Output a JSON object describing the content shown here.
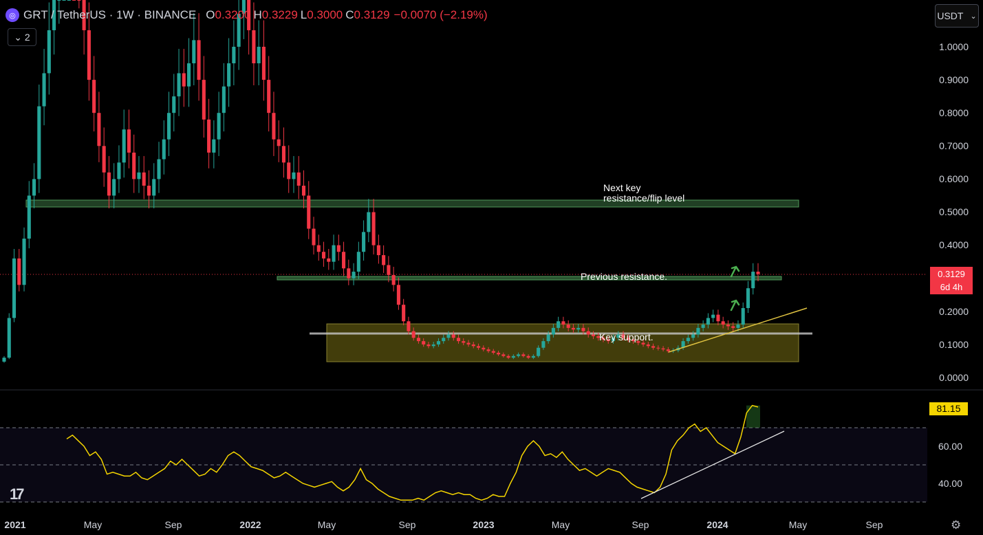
{
  "header": {
    "symbol": "GRT / TetherUS · 1W · BINANCE",
    "open_label": "O",
    "open": "0.3200",
    "high_label": "H",
    "high": "0.3229",
    "low_label": "L",
    "low": "0.3000",
    "close_label": "C",
    "close": "0.3129",
    "change": "−0.0070 (−2.19%)",
    "collapse_count": "2",
    "icon": "GRT-logo"
  },
  "currency_selector": "USDT",
  "price_label": {
    "price": "0.3129",
    "countdown": "6d 4h"
  },
  "rsi_label": "81.15",
  "annotations": {
    "resistance_flip": [
      "Next key",
      "resistance/flip level"
    ],
    "previous_resistance": "Previous resistance.",
    "key_support": "Key support."
  },
  "colors": {
    "up": "#26a69a",
    "down": "#f23645",
    "rsi_line": "#f5d500",
    "zone_green": "#2e5d3a",
    "zone_support": "#5c5712",
    "trendline": "#e0c341",
    "rsi_tag": "#f5d500"
  },
  "chart_data": [
    {
      "type": "candlestick",
      "title": "GRT / TetherUS · 1W · BINANCE",
      "xlabel": "",
      "ylabel": "",
      "ylim": [
        -0.02,
        1.1
      ],
      "price_axis_ticks": [
        "1.0000",
        "0.9000",
        "0.8000",
        "0.7000",
        "0.6000",
        "0.5000",
        "0.4000",
        "0.2000",
        "0.1000",
        "0.0000"
      ],
      "time_axis_ticks": [
        "2021",
        "May",
        "Sep",
        "2022",
        "May",
        "Sep",
        "2023",
        "May",
        "Sep",
        "2024",
        "May",
        "Sep"
      ],
      "key_levels": {
        "next_resistance": [
          0.52,
          0.54
        ],
        "previous_resistance": [
          0.3,
          0.31
        ],
        "key_support_zone": [
          0.05,
          0.17
        ],
        "support_line": 0.13
      },
      "trendline": [
        [
          "2023-10",
          0.075
        ],
        [
          "2024-04",
          0.21
        ]
      ],
      "weekly_close_approx": [
        0.06,
        0.18,
        0.36,
        0.28,
        0.42,
        0.55,
        0.6,
        0.82,
        0.92,
        1.05,
        1.15,
        1.25,
        1.35,
        1.4,
        1.3,
        1.2,
        1.05,
        0.9,
        0.8,
        0.7,
        0.62,
        0.55,
        0.6,
        0.65,
        0.75,
        0.68,
        0.6,
        0.62,
        0.58,
        0.55,
        0.6,
        0.66,
        0.72,
        0.8,
        0.85,
        0.92,
        0.88,
        0.95,
        1.02,
        0.9,
        0.78,
        0.68,
        0.72,
        0.8,
        0.88,
        0.95,
        1.0,
        1.1,
        1.2,
        1.05,
        0.95,
        1.0,
        0.9,
        0.8,
        0.72,
        0.7,
        0.65,
        0.6,
        0.62,
        0.58,
        0.55,
        0.45,
        0.4,
        0.38,
        0.36,
        0.35,
        0.4,
        0.38,
        0.33,
        0.3,
        0.32,
        0.38,
        0.44,
        0.5,
        0.4,
        0.37,
        0.34,
        0.31,
        0.28,
        0.22,
        0.17,
        0.14,
        0.12,
        0.11,
        0.1,
        0.095,
        0.1,
        0.11,
        0.12,
        0.13,
        0.12,
        0.11,
        0.105,
        0.1,
        0.095,
        0.09,
        0.085,
        0.08,
        0.075,
        0.07,
        0.065,
        0.06,
        0.065,
        0.07,
        0.065,
        0.06,
        0.065,
        0.09,
        0.11,
        0.13,
        0.15,
        0.17,
        0.16,
        0.15,
        0.145,
        0.15,
        0.14,
        0.13,
        0.125,
        0.12,
        0.115,
        0.11,
        0.12,
        0.13,
        0.12,
        0.115,
        0.11,
        0.105,
        0.1,
        0.095,
        0.09,
        0.088,
        0.085,
        0.08,
        0.082,
        0.09,
        0.11,
        0.12,
        0.13,
        0.15,
        0.16,
        0.18,
        0.19,
        0.17,
        0.16,
        0.155,
        0.15,
        0.16,
        0.21,
        0.27,
        0.32,
        0.3129
      ]
    },
    {
      "type": "line",
      "title": "",
      "xlabel": "",
      "ylabel": "",
      "ylim": [
        25,
        90
      ],
      "ticks": [
        "60.00",
        "40.00"
      ],
      "bands": [
        30,
        50,
        70
      ],
      "series": [
        {
          "values": [
            64,
            66,
            63,
            60,
            55,
            57,
            53,
            45,
            46,
            45,
            44,
            44,
            46,
            43,
            42,
            44,
            46,
            48,
            52,
            50,
            53,
            50,
            47,
            44,
            45,
            48,
            46,
            50,
            55,
            57,
            55,
            52,
            49,
            48,
            47,
            45,
            43,
            44,
            46,
            44,
            42,
            40,
            39,
            38,
            39,
            40,
            41,
            38,
            36,
            38,
            42,
            48,
            42,
            40,
            37,
            35,
            33,
            32,
            31,
            31,
            31,
            32,
            31,
            33,
            35,
            36,
            35,
            34,
            35,
            34,
            34,
            32,
            31,
            32,
            34,
            33,
            33,
            40,
            46,
            55,
            60,
            63,
            60,
            55,
            56,
            54,
            57,
            53,
            50,
            47,
            48,
            46,
            44,
            46,
            48,
            47,
            46,
            43,
            40,
            38,
            37,
            36,
            35,
            38,
            45,
            58,
            63,
            66,
            70,
            72,
            68,
            70,
            66,
            62,
            60,
            58,
            56,
            65,
            78,
            82,
            81.15
          ]
        }
      ],
      "trendline": [
        [
          0.0,
          30
        ],
        [
          1.0,
          69
        ]
      ]
    }
  ]
}
